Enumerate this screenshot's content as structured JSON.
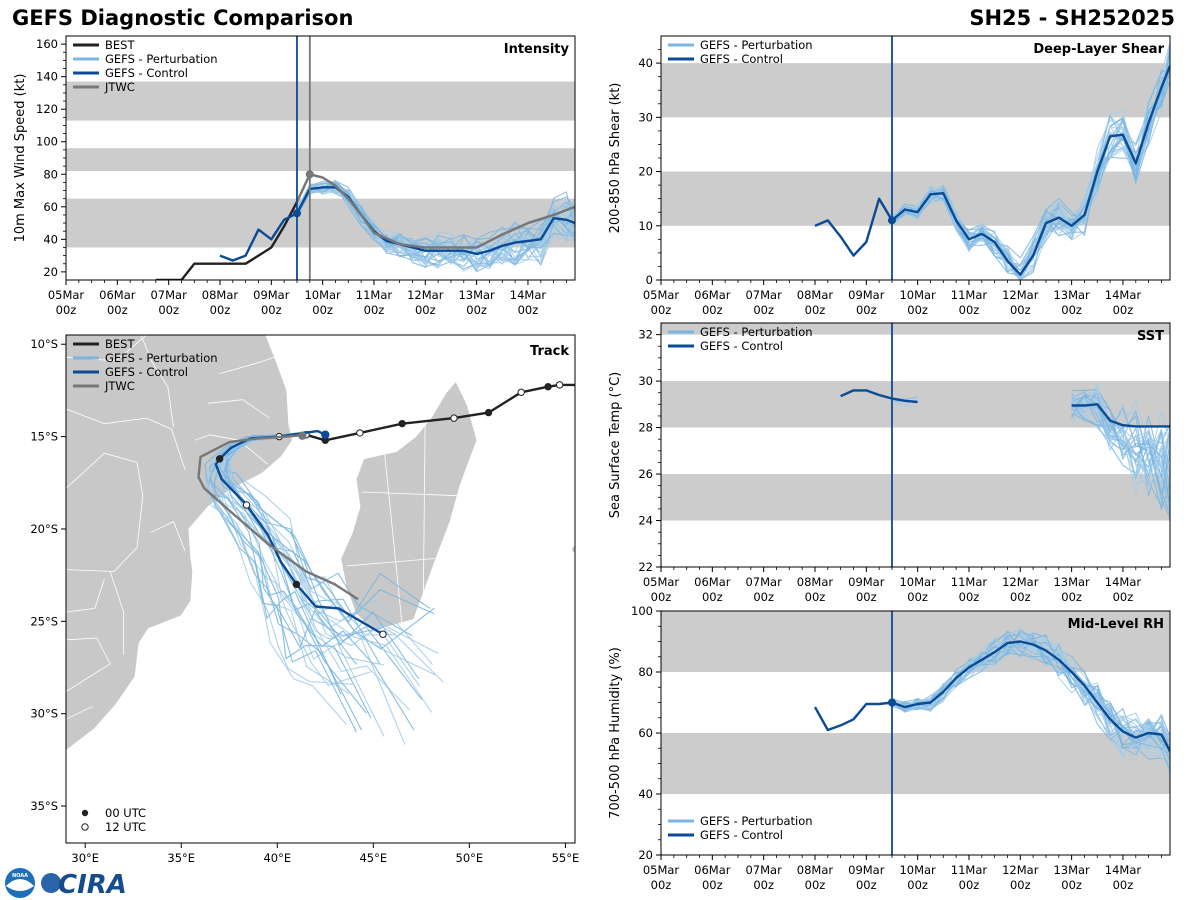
{
  "header": {
    "title_left": "GEFS Diagnostic Comparison",
    "title_right": "SH25 - SH252025"
  },
  "logo": {
    "text": "CIRA",
    "agency_text": "NOAA"
  },
  "colors": {
    "best": "#222222",
    "perturbation": "#7ab6e0",
    "perturbation_light": "#a6cde8",
    "control": "#0b4a95",
    "jtwc": "#777777",
    "band": "#cccccc",
    "land": "#c8c8c8"
  },
  "time_axis": {
    "tick_labels": [
      "05Mar",
      "06Mar",
      "07Mar",
      "08Mar",
      "09Mar",
      "10Mar",
      "11Mar",
      "12Mar",
      "13Mar",
      "14Mar"
    ],
    "sub_label": "00z",
    "range_hours": [
      0,
      238
    ],
    "init_hour": 108
  },
  "chart_data": [
    {
      "id": "intensity",
      "type": "line",
      "title": "Intensity",
      "xlabel": "",
      "ylabel": "10m Max Wind Speed (kt)",
      "ylim": [
        15,
        165
      ],
      "yticks": [
        20,
        40,
        60,
        80,
        100,
        120,
        140,
        160
      ],
      "bands": [
        [
          35,
          65
        ],
        [
          82,
          96
        ],
        [
          113,
          137
        ]
      ],
      "legend": [
        "BEST",
        "GEFS - Perturbation",
        "GEFS - Control",
        "JTWC"
      ],
      "legend_placement": "top-left",
      "vlines": [
        {
          "hour": 108,
          "series": "control"
        },
        {
          "hour": 114,
          "series": "jtwc"
        }
      ],
      "series": [
        {
          "name": "BEST",
          "role": "best",
          "x": [
            42,
            48,
            54,
            60,
            66,
            72,
            78,
            84,
            90,
            96,
            102,
            108
          ],
          "values": [
            15,
            15,
            15,
            25,
            25,
            25,
            25,
            25,
            30,
            35,
            48,
            63
          ]
        },
        {
          "name": "GEFS - Control",
          "role": "control",
          "x": [
            72,
            78,
            84,
            90,
            96,
            102,
            108,
            114,
            120,
            126,
            132,
            138,
            144,
            150,
            156,
            162,
            168,
            174,
            180,
            186,
            192,
            198,
            204,
            210,
            216,
            222,
            228,
            234,
            238
          ],
          "values": [
            30,
            27,
            30,
            46,
            40,
            52,
            56,
            71,
            72,
            72,
            66,
            55,
            45,
            39,
            37,
            35,
            33,
            33,
            33,
            33,
            31,
            33,
            36,
            38,
            39,
            40,
            53,
            52,
            50
          ]
        },
        {
          "name": "JTWC",
          "role": "jtwc",
          "x": [
            108,
            114,
            120,
            126,
            132,
            138,
            144,
            156,
            168,
            180,
            192,
            204,
            216,
            228,
            238
          ],
          "values": [
            63,
            80,
            78,
            73,
            65,
            55,
            44,
            37,
            35,
            35,
            35,
            43,
            50,
            55,
            60
          ]
        }
      ],
      "points": [
        {
          "series": "control",
          "hour": 108,
          "value": 56
        },
        {
          "series": "jtwc",
          "hour": 114,
          "value": 80
        }
      ]
    },
    {
      "id": "shear",
      "type": "line",
      "title": "Deep-Layer Shear",
      "xlabel": "",
      "ylabel": "200-850 hPa Shear (kt)",
      "ylim": [
        0,
        45
      ],
      "yticks": [
        0,
        10,
        20,
        30,
        40
      ],
      "bands": [
        [
          10,
          20
        ],
        [
          30,
          40
        ]
      ],
      "legend": [
        "GEFS - Perturbation",
        "GEFS - Control"
      ],
      "legend_placement": "top-left",
      "vlines": [
        {
          "hour": 108,
          "series": "control"
        }
      ],
      "series": [
        {
          "name": "GEFS - Control",
          "role": "control",
          "x": [
            72,
            78,
            84,
            90,
            96,
            102,
            108,
            114,
            120,
            126,
            132,
            138,
            144,
            150,
            156,
            162,
            168,
            174,
            180,
            186,
            192,
            198,
            204,
            210,
            216,
            222,
            228,
            234,
            238
          ],
          "values": [
            10,
            11,
            8,
            4.5,
            7,
            15,
            11,
            13,
            12.5,
            15.8,
            16,
            11,
            7.5,
            8.5,
            7,
            3.5,
            1,
            4.5,
            10.5,
            11.5,
            10,
            12,
            20,
            26.5,
            26.8,
            21.5,
            29,
            35.5,
            39.5
          ]
        }
      ],
      "points": [
        {
          "series": "control",
          "hour": 108,
          "value": 11
        }
      ]
    },
    {
      "id": "track",
      "type": "line",
      "title": "Track",
      "xlabel": "",
      "ylabel": "",
      "xlim_lon": [
        29,
        55.5
      ],
      "ylim_lat": [
        -37,
        -9.5
      ],
      "xticks": [
        "30°E",
        "35°E",
        "40°E",
        "45°E",
        "50°E",
        "55°E"
      ],
      "yticks": [
        "10°S",
        "15°S",
        "20°S",
        "25°S",
        "30°S",
        "35°S"
      ],
      "legend": [
        "BEST",
        "GEFS - Perturbation",
        "GEFS - Control",
        "JTWC"
      ],
      "legend_placement": "top-left",
      "marker_legend": [
        "00 UTC",
        "12 UTC"
      ],
      "marker_legend_placement": "bottom-left",
      "series": [
        {
          "name": "BEST",
          "role": "best",
          "lon": [
            55.5,
            54.7,
            54.1,
            52.7,
            51,
            49.2,
            46.5,
            44.3,
            42.5,
            41.5
          ],
          "lat": [
            -12.2,
            -12.2,
            -12.3,
            -12.6,
            -13.7,
            -14.0,
            -14.3,
            -14.8,
            -15.2,
            -14.9
          ]
        },
        {
          "name": "GEFS - Control",
          "role": "control",
          "lon": [
            42.5,
            42.1,
            41.4,
            40.1,
            38.6,
            37.6,
            37.0,
            36.8,
            37.1,
            38.4,
            39.5,
            40.2,
            41.0,
            42.0,
            43.2,
            45.5
          ],
          "lat": [
            -14.9,
            -14.7,
            -14.8,
            -15.0,
            -15.1,
            -15.6,
            -16.2,
            -16.5,
            -17.3,
            -18.7,
            -20.3,
            -21.8,
            -23.0,
            -24.2,
            -24.3,
            -25.7
          ]
        },
        {
          "name": "JTWC",
          "role": "jtwc",
          "lon": [
            41.5,
            40.5,
            39.0,
            37.5,
            36.0,
            35.9,
            36.2,
            37.5,
            39.5,
            41.5,
            43.0,
            44.2
          ],
          "lat": [
            -14.9,
            -15.0,
            -15.1,
            -15.3,
            -16.1,
            -17.2,
            -17.8,
            -19.0,
            -20.8,
            -22.3,
            -23.0,
            -23.8
          ]
        }
      ]
    },
    {
      "id": "sst",
      "type": "line",
      "title": "SST",
      "xlabel": "",
      "ylabel": "Sea Surface Temp (°C)",
      "ylim": [
        22,
        32.5
      ],
      "yticks": [
        22,
        24,
        26,
        28,
        30,
        32
      ],
      "bands": [
        [
          24,
          26
        ],
        [
          28,
          30
        ],
        [
          32,
          32.5
        ]
      ],
      "legend": [
        "GEFS - Perturbation",
        "GEFS - Control"
      ],
      "legend_placement": "top-left",
      "vlines": [
        {
          "hour": 108,
          "series": "control"
        }
      ],
      "series": [
        {
          "name": "GEFS - Control",
          "role": "control",
          "segments": [
            {
              "x": [
                84,
                90,
                96,
                102,
                108,
                114,
                120
              ],
              "values": [
                29.35,
                29.6,
                29.6,
                29.4,
                29.25,
                29.15,
                29.1
              ]
            },
            {
              "x": [
                192,
                198,
                204,
                210,
                216,
                222,
                228,
                234,
                238
              ],
              "values": [
                28.95,
                28.95,
                29.0,
                28.3,
                28.1,
                28.05,
                28.05,
                28.05,
                28.05
              ]
            }
          ]
        }
      ]
    },
    {
      "id": "rh",
      "type": "line",
      "title": "Mid-Level RH",
      "xlabel": "",
      "ylabel": "700-500 hPa Humidity (%)",
      "ylim": [
        20,
        100
      ],
      "yticks": [
        20,
        40,
        60,
        80,
        100
      ],
      "bands": [
        [
          40,
          60
        ],
        [
          80,
          100
        ]
      ],
      "legend": [
        "GEFS - Perturbation",
        "GEFS - Control"
      ],
      "legend_placement": "bottom-left",
      "vlines": [
        {
          "hour": 108,
          "series": "control"
        }
      ],
      "series": [
        {
          "name": "GEFS - Control",
          "role": "control",
          "x": [
            72,
            78,
            84,
            90,
            96,
            102,
            108,
            114,
            120,
            126,
            132,
            138,
            144,
            150,
            156,
            162,
            168,
            174,
            180,
            186,
            192,
            198,
            204,
            210,
            216,
            222,
            228,
            234,
            238
          ],
          "values": [
            68.5,
            61,
            62.5,
            64.5,
            69.5,
            69.5,
            70,
            68.5,
            69.5,
            70,
            73.5,
            78,
            81.5,
            84,
            86.5,
            89.5,
            90,
            89,
            87,
            84,
            80,
            75.5,
            70,
            64.5,
            60.5,
            58.5,
            60,
            59.5,
            54
          ]
        }
      ],
      "points": [
        {
          "series": "control",
          "hour": 108,
          "value": 70
        }
      ]
    }
  ]
}
